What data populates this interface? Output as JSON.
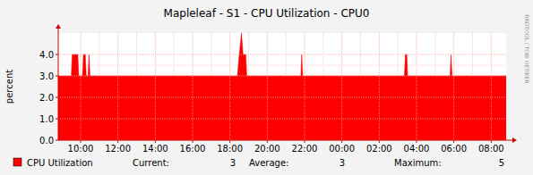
{
  "chart_data": {
    "type": "area",
    "title": "Mapleleaf - S1 - CPU Utilization - CPU0",
    "y_label": "percent",
    "watermark": "RRDTOOL / TOBI OETIKER",
    "x": [
      8.8,
      9.5,
      9.55,
      9.85,
      9.9,
      10.1,
      10.15,
      10.25,
      10.3,
      10.4,
      10.45,
      10.5,
      18.4,
      18.5,
      18.62,
      18.7,
      18.85,
      18.9,
      21.8,
      21.85,
      21.9,
      27.35,
      27.4,
      27.48,
      27.52,
      29.8,
      29.85,
      29.9,
      32.8
    ],
    "series": [
      {
        "name": "CPU Utilization",
        "color": "#ff0000",
        "values": [
          3,
          3,
          4,
          4,
          3,
          3,
          4,
          4,
          3,
          3,
          4,
          3,
          3,
          4,
          5,
          4,
          4,
          3,
          3,
          4,
          3,
          3,
          4,
          4,
          3,
          3,
          4,
          3,
          3
        ]
      }
    ],
    "xlim": [
      8.8,
      32.8
    ],
    "xticks": [
      {
        "value": 10,
        "label": "10:00"
      },
      {
        "value": 12,
        "label": "12:00"
      },
      {
        "value": 14,
        "label": "14:00"
      },
      {
        "value": 16,
        "label": "16:00"
      },
      {
        "value": 18,
        "label": "18:00"
      },
      {
        "value": 20,
        "label": "20:00"
      },
      {
        "value": 22,
        "label": "22:00"
      },
      {
        "value": 24,
        "label": "00:00"
      },
      {
        "value": 26,
        "label": "02:00"
      },
      {
        "value": 28,
        "label": "04:00"
      },
      {
        "value": 30,
        "label": "06:00"
      },
      {
        "value": 32,
        "label": "08:00"
      }
    ],
    "ylim": [
      0,
      5
    ],
    "yticks": [
      {
        "value": 0,
        "label": "0.0"
      },
      {
        "value": 1,
        "label": "1.0"
      },
      {
        "value": 2,
        "label": "2.0"
      },
      {
        "value": 3,
        "label": "3.0"
      },
      {
        "value": 4,
        "label": "4.0"
      }
    ],
    "grid": true,
    "legend": "bottom",
    "legend_stats": [
      {
        "label": "Current:",
        "value": 3
      },
      {
        "label": "Average:",
        "value": 3
      },
      {
        "label": "Maximum:",
        "value": 5
      }
    ]
  }
}
